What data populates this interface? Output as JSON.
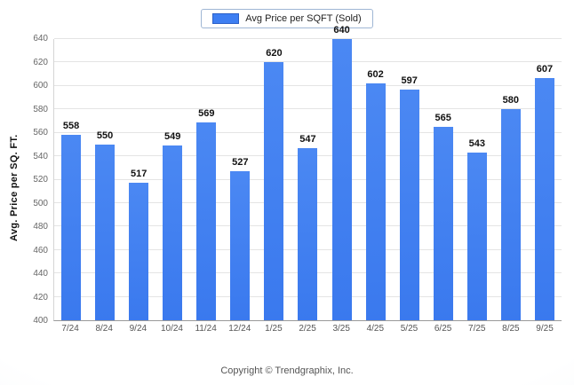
{
  "legend": {
    "label": "Avg Price per SQFT (Sold)",
    "swatch_color": "#3d7ef2"
  },
  "footer": {
    "copyright": "Copyright © Trendgraphix, Inc."
  },
  "colors": {
    "bar": "#3d7ef2",
    "bar_border": "#2b60c8",
    "gridline": "#e4e4e4",
    "axis": "#999999"
  },
  "chart_data": {
    "type": "bar",
    "title": "",
    "xlabel": "",
    "ylabel": "Avg. Price per SQ. FT.",
    "ylim": [
      400,
      640
    ],
    "ytick_step": 20,
    "yticks": [
      400,
      420,
      440,
      460,
      480,
      500,
      520,
      540,
      560,
      580,
      600,
      620,
      640
    ],
    "categories": [
      "7/24",
      "8/24",
      "9/24",
      "10/24",
      "11/24",
      "12/24",
      "1/25",
      "2/25",
      "3/25",
      "4/25",
      "5/25",
      "6/25",
      "7/25",
      "8/25",
      "9/25"
    ],
    "series": [
      {
        "name": "Avg Price per SQFT (Sold)",
        "values": [
          558,
          550,
          517,
          549,
          569,
          527,
          620,
          547,
          640,
          602,
          597,
          565,
          543,
          580,
          607
        ]
      }
    ],
    "bar_color": "#3d7ef2",
    "grid": true,
    "legend_position": "top",
    "data_labels": true
  }
}
